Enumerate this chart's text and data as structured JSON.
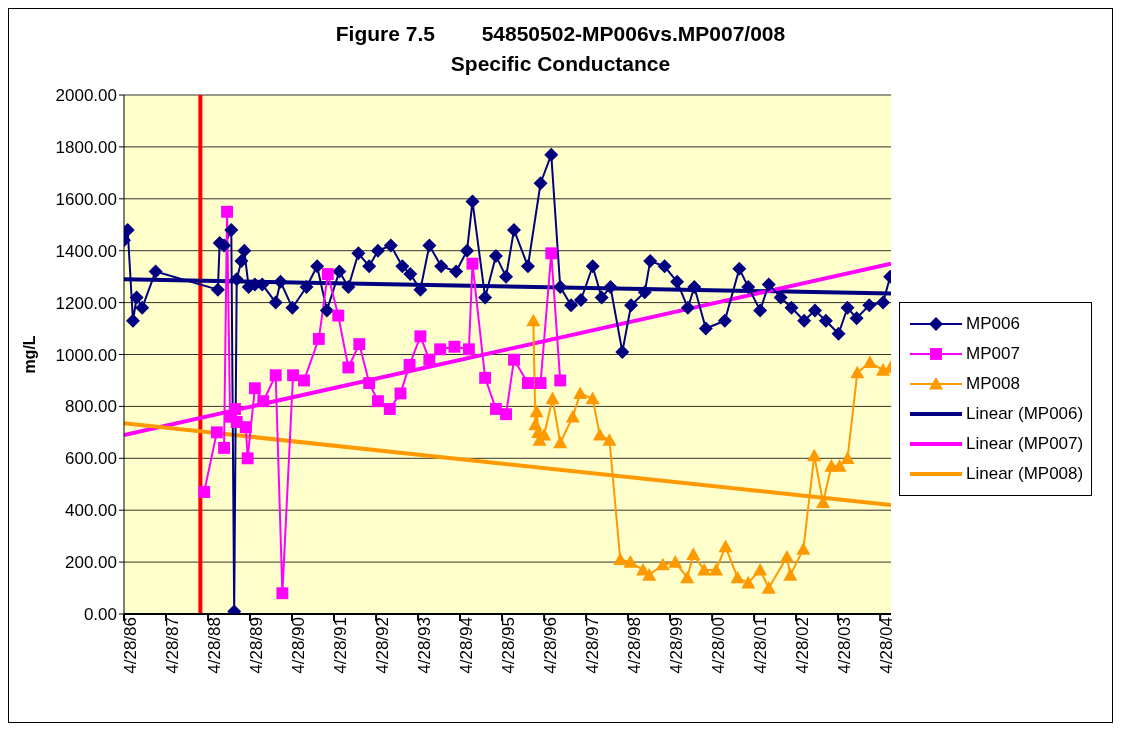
{
  "chart_data": {
    "type": "line",
    "title": "Figure 7.5        54850502-MP006vs.MP007/008",
    "subtitle": "Specific Conductance",
    "ylabel": "mg/L",
    "xlim": [
      "1986-04-28",
      "2004-07-31"
    ],
    "xticks": [
      {
        "value": "1986-04-28",
        "label": "4/28/86"
      },
      {
        "value": "1987-04-28",
        "label": "4/28/87"
      },
      {
        "value": "1988-04-28",
        "label": "4/28/88"
      },
      {
        "value": "1989-04-28",
        "label": "4/28/89"
      },
      {
        "value": "1990-04-28",
        "label": "4/28/90"
      },
      {
        "value": "1991-04-28",
        "label": "4/28/91"
      },
      {
        "value": "1992-04-28",
        "label": "4/28/92"
      },
      {
        "value": "1993-04-28",
        "label": "4/28/93"
      },
      {
        "value": "1994-04-28",
        "label": "4/28/94"
      },
      {
        "value": "1995-04-28",
        "label": "4/28/95"
      },
      {
        "value": "1996-04-28",
        "label": "4/28/96"
      },
      {
        "value": "1997-04-28",
        "label": "4/28/97"
      },
      {
        "value": "1998-04-28",
        "label": "4/28/98"
      },
      {
        "value": "1999-04-28",
        "label": "4/28/99"
      },
      {
        "value": "2000-04-28",
        "label": "4/28/00"
      },
      {
        "value": "2001-04-28",
        "label": "4/28/01"
      },
      {
        "value": "2002-04-28",
        "label": "4/28/02"
      },
      {
        "value": "2003-04-28",
        "label": "4/28/03"
      },
      {
        "value": "2004-04-28",
        "label": "4/28/04"
      }
    ],
    "ylim": [
      0,
      2000
    ],
    "yticks": [
      {
        "value": 0,
        "label": "0.00"
      },
      {
        "value": 200,
        "label": "200.00"
      },
      {
        "value": 400,
        "label": "400.00"
      },
      {
        "value": 600,
        "label": "600.00"
      },
      {
        "value": 800,
        "label": "800.00"
      },
      {
        "value": 1000,
        "label": "1000.00"
      },
      {
        "value": 1200,
        "label": "1200.00"
      },
      {
        "value": 1400,
        "label": "1400.00"
      },
      {
        "value": 1600,
        "label": "1600.00"
      },
      {
        "value": 1800,
        "label": "1800.00"
      },
      {
        "value": 2000,
        "label": "2000.00"
      }
    ],
    "grid": "y",
    "legend": "right",
    "ref_lines": [
      {
        "axis": "x",
        "value": "1988-02-21",
        "label": null,
        "color": "#ff0000"
      }
    ],
    "series": [
      {
        "name": "MP006",
        "color": "#000080",
        "marker": "diamond",
        "x": [
          "1986-04-28",
          "1986-05-30",
          "1986-07-15",
          "1986-08-16",
          "1986-10-03",
          "1987-01-28",
          "1988-07-22",
          "1988-08-07",
          "1988-09-14",
          "1988-11-16",
          "1988-12-11",
          "1989-01-02",
          "1989-02-12",
          "1989-03-09",
          "1989-04-16",
          "1989-06-09",
          "1989-08-12",
          "1989-12-07",
          "1990-01-18",
          "1990-05-01",
          "1990-09-01",
          "1990-12-02",
          "1991-02-25",
          "1991-06-13",
          "1991-08-31",
          "1991-11-26",
          "1992-02-28",
          "1992-05-14",
          "1992-09-03",
          "1992-12-12",
          "1993-02-19",
          "1993-05-18",
          "1993-08-04",
          "1993-11-15",
          "1994-03-25",
          "1994-06-28",
          "1994-08-14",
          "1994-12-02",
          "1995-03-06",
          "1995-06-02",
          "1995-08-10",
          "1995-12-09",
          "1996-03-28",
          "1996-06-29",
          "1996-09-15",
          "1996-12-18",
          "1997-03-14",
          "1997-06-24",
          "1997-09-10",
          "1997-11-26",
          "1998-03-09",
          "1998-05-24",
          "1998-09-20",
          "1998-11-06",
          "1999-03-11",
          "1999-06-28",
          "1999-09-30",
          "1999-11-25",
          "2000-03-04",
          "2000-08-16",
          "2000-12-20",
          "2001-03-08",
          "2001-06-19",
          "2001-09-02",
          "2001-12-15",
          "2002-03-19",
          "2002-07-07",
          "2002-10-09",
          "2003-01-12",
          "2003-05-02",
          "2003-07-19",
          "2003-10-06",
          "2004-01-24",
          "2004-05-23",
          "2004-07-24"
        ],
        "values": [
          1440,
          1480,
          1130,
          1220,
          1180,
          1320,
          1250,
          1430,
          1420,
          1480,
          10,
          1290,
          1360,
          1400,
          1260,
          1270,
          1270,
          1200,
          1280,
          1180,
          1260,
          1340,
          1170,
          1320,
          1260,
          1390,
          1340,
          1400,
          1420,
          1340,
          1310,
          1250,
          1420,
          1340,
          1320,
          1400,
          1590,
          1220,
          1380,
          1300,
          1480,
          1340,
          1660,
          1770,
          1260,
          1190,
          1210,
          1340,
          1220,
          1260,
          1010,
          1190,
          1240,
          1360,
          1340,
          1280,
          1180,
          1260,
          1100,
          1130,
          1330,
          1260,
          1170,
          1270,
          1220,
          1180,
          1130,
          1170,
          1130,
          1080,
          1180,
          1140,
          1190,
          1200,
          1300
        ]
      },
      {
        "name": "MP007",
        "color": "#ff00ff",
        "marker": "square",
        "x": [
          "1988-03-25",
          "1988-07-13",
          "1988-08-14",
          "1988-09-14",
          "1988-10-10",
          "1988-11-05",
          "1988-12-18",
          "1989-01-02",
          "1989-03-22",
          "1989-04-07",
          "1989-06-09",
          "1989-08-21",
          "1989-12-07",
          "1990-02-03",
          "1990-05-07",
          "1990-08-10",
          "1990-12-17",
          "1991-03-05",
          "1991-06-04",
          "1991-08-31",
          "1991-12-04",
          "1992-02-28",
          "1992-05-14",
          "1992-08-25",
          "1992-11-26",
          "1993-02-13",
          "1993-05-18",
          "1993-08-04",
          "1993-11-06",
          "1994-03-10",
          "1994-07-14",
          "1994-08-14",
          "1994-12-02",
          "1995-03-06",
          "1995-06-02",
          "1995-08-10",
          "1995-12-09",
          "1996-03-28",
          "1996-06-29",
          "1996-09-15"
        ],
        "values": [
          470,
          700,
          null,
          640,
          1550,
          760,
          790,
          740,
          720,
          600,
          870,
          820,
          920,
          80,
          920,
          900,
          1060,
          1310,
          1150,
          950,
          1040,
          890,
          820,
          790,
          850,
          960,
          1070,
          980,
          1020,
          1030,
          1020,
          1350,
          910,
          790,
          770,
          980,
          890,
          890,
          1390,
          900
        ]
      },
      {
        "name": "MP008",
        "color": "#ff9900",
        "marker": "triangle",
        "x": [
          "1996-01-25",
          "1996-02-12",
          "1996-02-23",
          "1996-03-08",
          "1996-03-19",
          "1996-04-28",
          "1996-07-10",
          "1996-09-15",
          "1997-01-02",
          "1997-03-08",
          "1997-06-24",
          "1997-08-25",
          "1997-11-17",
          "1998-02-19",
          "1998-05-18",
          "1998-09-05",
          "1998-10-28",
          "1999-02-24",
          "1999-06-12",
          "1999-09-24",
          "1999-11-16",
          "2000-02-18",
          "2000-06-01",
          "2000-08-22",
          "2000-12-04",
          "2001-03-08",
          "2001-06-19",
          "2001-09-02",
          "2002-02-07",
          "2002-03-09",
          "2002-06-30",
          "2002-10-03",
          "2002-12-18",
          "2003-03-01",
          "2003-05-11",
          "2003-07-19",
          "2003-10-12",
          "2004-01-30",
          "2004-05-23",
          "2004-07-28"
        ],
        "values": [
          1130,
          730,
          780,
          700,
          670,
          690,
          830,
          660,
          760,
          850,
          830,
          690,
          670,
          210,
          200,
          170,
          150,
          190,
          200,
          140,
          230,
          170,
          170,
          260,
          140,
          120,
          170,
          100,
          220,
          150,
          250,
          610,
          430,
          570,
          570,
          600,
          930,
          970,
          940,
          950
        ]
      },
      {
        "name": "Linear (MP006)",
        "color": "#000080",
        "marker": "none",
        "x": [
          "1986-04-28",
          "2004-07-31"
        ],
        "values": [
          1290,
          1235
        ]
      },
      {
        "name": "Linear (MP007)",
        "color": "#ff00ff",
        "marker": "none",
        "x": [
          "1986-04-28",
          "2004-07-31"
        ],
        "values": [
          690,
          1350
        ]
      },
      {
        "name": "Linear (MP008)",
        "color": "#ff9900",
        "marker": "none",
        "x": [
          "1986-04-28",
          "2004-07-31"
        ],
        "values": [
          735,
          420
        ]
      }
    ]
  }
}
